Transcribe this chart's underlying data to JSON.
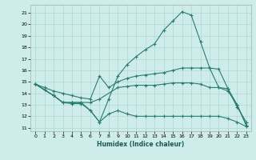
{
  "xlabel": "Humidex (Indice chaleur)",
  "bg_color": "#ceecea",
  "grid_color": "#b0d8d4",
  "line_color": "#2a7d6e",
  "xlim": [
    -0.5,
    23.5
  ],
  "ylim": [
    10.7,
    21.7
  ],
  "yticks": [
    11,
    12,
    13,
    14,
    15,
    16,
    17,
    18,
    19,
    20,
    21
  ],
  "xticks": [
    0,
    1,
    2,
    3,
    4,
    5,
    6,
    7,
    8,
    9,
    10,
    11,
    12,
    13,
    14,
    15,
    16,
    17,
    18,
    19,
    20,
    21,
    22,
    23
  ],
  "line1_x": [
    0,
    1,
    2,
    3,
    4,
    5,
    6,
    7,
    8,
    9,
    10,
    11,
    12,
    13,
    14,
    15,
    16,
    17,
    18,
    19,
    20,
    21,
    22,
    23
  ],
  "line1_y": [
    14.8,
    14.3,
    13.8,
    13.2,
    13.2,
    13.2,
    12.5,
    11.5,
    13.5,
    15.5,
    16.5,
    17.2,
    17.8,
    18.3,
    19.5,
    20.3,
    21.1,
    20.8,
    18.5,
    16.2,
    16.1,
    14.4,
    12.8,
    11.5
  ],
  "line2_x": [
    0,
    1,
    2,
    3,
    4,
    5,
    6,
    7,
    8,
    9,
    10,
    11,
    12,
    13,
    14,
    15,
    16,
    17,
    18,
    19,
    20,
    21,
    22,
    23
  ],
  "line2_y": [
    14.8,
    14.5,
    14.2,
    14.0,
    13.8,
    13.6,
    13.5,
    15.5,
    14.5,
    15.0,
    15.3,
    15.5,
    15.6,
    15.7,
    15.8,
    16.0,
    16.2,
    16.2,
    16.2,
    16.2,
    14.5,
    14.2,
    13.0,
    11.2
  ],
  "line3_x": [
    0,
    2,
    3,
    4,
    5,
    6,
    7,
    9,
    10,
    11,
    12,
    13,
    14,
    15,
    16,
    17,
    18,
    19,
    20,
    21,
    22,
    23
  ],
  "line3_y": [
    14.8,
    13.8,
    13.2,
    13.2,
    13.2,
    13.2,
    13.5,
    14.5,
    14.6,
    14.7,
    14.7,
    14.7,
    14.8,
    14.9,
    14.9,
    14.9,
    14.8,
    14.5,
    14.5,
    14.4,
    13.0,
    11.2
  ],
  "line4_x": [
    0,
    1,
    2,
    3,
    4,
    5,
    6,
    7,
    8,
    9,
    10,
    11,
    12,
    13,
    14,
    15,
    16,
    17,
    18,
    19,
    20,
    21,
    22,
    23
  ],
  "line4_y": [
    14.8,
    14.3,
    13.8,
    13.2,
    13.1,
    13.1,
    12.5,
    11.5,
    12.2,
    12.5,
    12.2,
    12.0,
    12.0,
    12.0,
    12.0,
    12.0,
    12.0,
    12.0,
    12.0,
    12.0,
    12.0,
    11.8,
    11.5,
    11.1
  ]
}
